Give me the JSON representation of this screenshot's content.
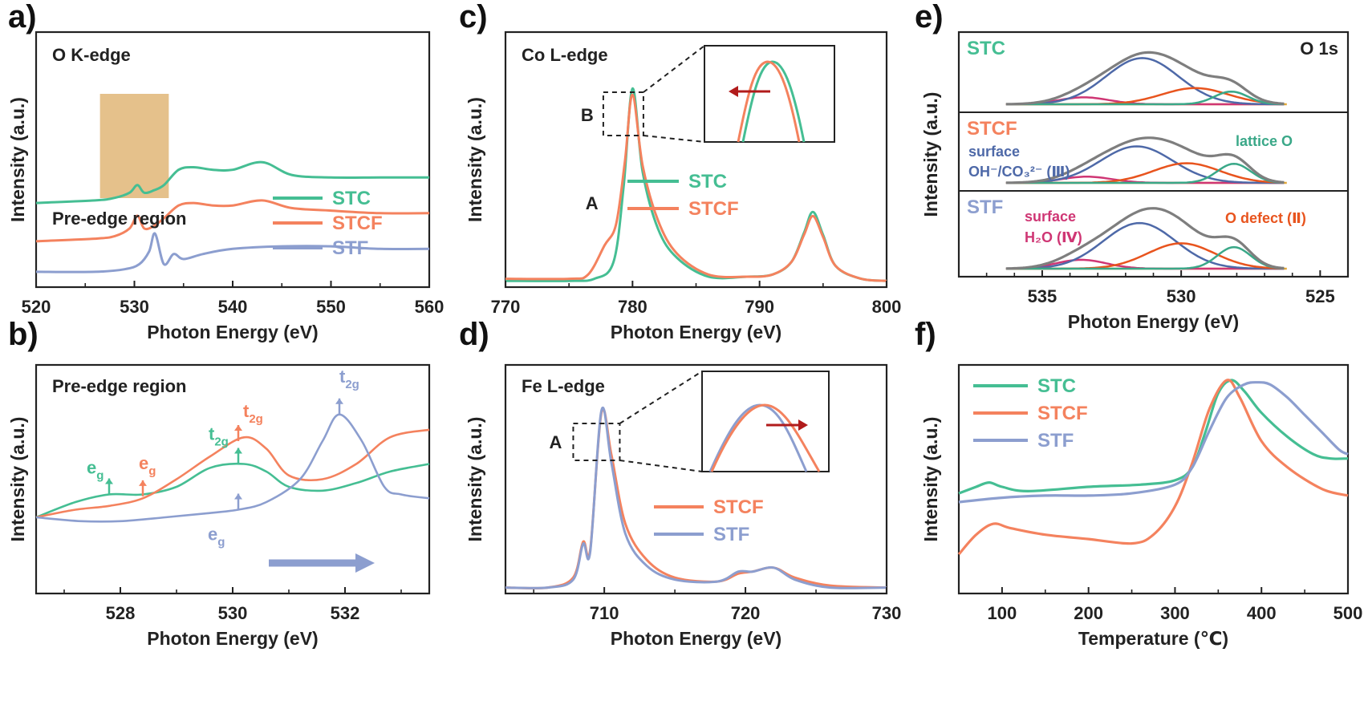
{
  "colors": {
    "STC": "#45BE93",
    "STCF": "#F4825E",
    "STF": "#8C9ECF",
    "text": "#222222"
  },
  "chart_data": [
    {
      "panel": "a)",
      "type": "line",
      "title": "O K-edge",
      "xlabel": "Photon Energy (eV)",
      "ylabel": "Intensity (a.u.)",
      "xlim": [
        520,
        560
      ],
      "xticks": [
        "520",
        "530",
        "540",
        "550",
        "560"
      ],
      "shaded_region_label": "Pre-edge region",
      "shaded_range": [
        526.5,
        533.5
      ],
      "legend": "bottom-right",
      "series": [
        {
          "name": "STC",
          "x": [
            520,
            526,
            528,
            529.5,
            530.3,
            531,
            532,
            533,
            534.5,
            536,
            538,
            540,
            543,
            546,
            550,
            555,
            560
          ],
          "y": [
            0.33,
            0.34,
            0.35,
            0.37,
            0.4,
            0.37,
            0.38,
            0.4,
            0.46,
            0.47,
            0.46,
            0.46,
            0.49,
            0.44,
            0.43,
            0.43,
            0.43
          ]
        },
        {
          "name": "STCF",
          "x": [
            520,
            526,
            528,
            529.5,
            530.3,
            531,
            532,
            533,
            534.5,
            536,
            538,
            540,
            543,
            546,
            550,
            555,
            560
          ],
          "y": [
            0.18,
            0.19,
            0.2,
            0.23,
            0.28,
            0.23,
            0.24,
            0.27,
            0.32,
            0.33,
            0.32,
            0.32,
            0.34,
            0.31,
            0.3,
            0.29,
            0.29
          ]
        },
        {
          "name": "STF",
          "x": [
            520,
            526,
            529,
            530.5,
            531.5,
            532.1,
            533,
            534,
            535,
            537,
            540,
            545,
            550,
            555,
            560
          ],
          "y": [
            0.06,
            0.06,
            0.07,
            0.09,
            0.14,
            0.21,
            0.09,
            0.13,
            0.11,
            0.13,
            0.15,
            0.16,
            0.16,
            0.15,
            0.15
          ]
        }
      ]
    },
    {
      "panel": "b)",
      "type": "line",
      "title": "Pre-edge region",
      "xlabel": "Photon Energy (eV)",
      "ylabel": "Intensity (a.u.)",
      "xlim": [
        526.5,
        533.5
      ],
      "xticks": [
        "528",
        "530",
        "532"
      ],
      "annotations": [
        "e",
        "g",
        "t",
        "2g"
      ],
      "series": [
        {
          "name": "STC",
          "x": [
            526.5,
            527.2,
            527.8,
            528.4,
            529.0,
            529.6,
            530.2,
            530.6,
            531.0,
            531.6,
            532.2,
            532.8,
            533.5
          ],
          "y": [
            0.5,
            0.54,
            0.56,
            0.56,
            0.58,
            0.63,
            0.64,
            0.62,
            0.58,
            0.57,
            0.59,
            0.62,
            0.64
          ]
        },
        {
          "name": "STCF",
          "x": [
            526.5,
            527.2,
            527.8,
            528.4,
            529.0,
            529.6,
            530.2,
            530.6,
            531.0,
            531.6,
            532.2,
            532.8,
            533.5
          ],
          "y": [
            0.5,
            0.52,
            0.53,
            0.55,
            0.6,
            0.66,
            0.71,
            0.68,
            0.61,
            0.6,
            0.64,
            0.71,
            0.73
          ]
        },
        {
          "name": "STF",
          "x": [
            526.5,
            527.3,
            528.0,
            528.8,
            529.5,
            530.1,
            530.6,
            531.2,
            531.6,
            531.9,
            532.3,
            532.7,
            533.0,
            533.5
          ],
          "y": [
            0.5,
            0.49,
            0.49,
            0.5,
            0.51,
            0.52,
            0.54,
            0.6,
            0.7,
            0.77,
            0.7,
            0.58,
            0.56,
            0.55
          ]
        }
      ]
    },
    {
      "panel": "c)",
      "type": "line",
      "title": "Co L-edge",
      "xlabel": "Photon Energy (eV)",
      "ylabel": "Intensity (a.u.)",
      "xlim": [
        770,
        800
      ],
      "xticks": [
        "770",
        "780",
        "790",
        "800"
      ],
      "peak_labels": [
        "A",
        "B"
      ],
      "legend": "center",
      "series": [
        {
          "name": "STC",
          "x": [
            770,
            775,
            777,
            778.5,
            779.3,
            780,
            780.8,
            782,
            783.5,
            786,
            789,
            791,
            792.5,
            793.5,
            794.2,
            795,
            796,
            798,
            800
          ],
          "y": [
            0.03,
            0.03,
            0.04,
            0.12,
            0.48,
            0.95,
            0.55,
            0.28,
            0.14,
            0.05,
            0.05,
            0.06,
            0.12,
            0.26,
            0.36,
            0.25,
            0.1,
            0.04,
            0.03
          ]
        },
        {
          "name": "STCF",
          "x": [
            770,
            775,
            776.5,
            777.8,
            778.7,
            779.4,
            780,
            780.8,
            782,
            783.5,
            786,
            789,
            791,
            792.5,
            793.5,
            794.2,
            795,
            796,
            798,
            800
          ],
          "y": [
            0.04,
            0.04,
            0.06,
            0.2,
            0.3,
            0.6,
            0.92,
            0.58,
            0.32,
            0.16,
            0.06,
            0.05,
            0.06,
            0.12,
            0.25,
            0.34,
            0.24,
            0.1,
            0.04,
            0.03
          ]
        }
      ]
    },
    {
      "panel": "d)",
      "type": "line",
      "title": "Fe L-edge",
      "xlabel": "Photon Energy (eV)",
      "ylabel": "Intensity (a.u.)",
      "xlim": [
        703,
        730
      ],
      "xticks": [
        "710",
        "720",
        "730"
      ],
      "peak_labels": [
        "A"
      ],
      "legend": "center-right",
      "series": [
        {
          "name": "STCF",
          "x": [
            703,
            706,
            707.8,
            708.5,
            709,
            709.8,
            710.5,
            711.5,
            713,
            715,
            718,
            719.5,
            720.5,
            722,
            723.5,
            726,
            730
          ],
          "y": [
            0.03,
            0.03,
            0.08,
            0.26,
            0.22,
            0.91,
            0.7,
            0.35,
            0.17,
            0.08,
            0.06,
            0.1,
            0.11,
            0.13,
            0.08,
            0.04,
            0.03
          ]
        },
        {
          "name": "STF",
          "x": [
            703,
            706,
            707.8,
            708.5,
            709,
            709.8,
            710.5,
            711.5,
            713,
            715,
            718,
            719.5,
            720.5,
            722,
            723.5,
            726,
            730
          ],
          "y": [
            0.03,
            0.03,
            0.07,
            0.25,
            0.21,
            0.92,
            0.66,
            0.3,
            0.14,
            0.07,
            0.06,
            0.11,
            0.11,
            0.13,
            0.07,
            0.03,
            0.03
          ]
        }
      ]
    },
    {
      "panel": "e)",
      "type": "line",
      "title": "O 1s",
      "xlabel": "Photon Energy (eV)",
      "ylabel": "Intensity (a.u.)",
      "xlim": [
        538,
        524
      ],
      "xticks": [
        "535",
        "530",
        "525"
      ],
      "samples": [
        "STC",
        "STCF",
        "STF"
      ],
      "component_labels": {
        "lattice": "lattice O",
        "defect": "O defect (Ⅱ)",
        "surface_oh_prefix": "surface",
        "surface_oh": "OH⁻/CO₃²⁻ (Ⅲ)",
        "surface_h2o_prefix": "surface",
        "surface_h2o": "H₂O (Ⅳ)"
      },
      "component_colors": {
        "envelope": "#7E7E7E",
        "III": "#4E69A8",
        "II": "#E8541E",
        "I": "#3AA888",
        "IV": "#CF3674",
        "baseline": "#E3A838"
      },
      "components": {
        "STC": {
          "IV": [
            533.5,
            0.12
          ],
          "III": [
            531.4,
            0.8
          ],
          "II": [
            529.5,
            0.28
          ],
          "I": [
            528.2,
            0.22
          ]
        },
        "STCF": {
          "IV": [
            533.4,
            0.11
          ],
          "III": [
            531.6,
            0.65
          ],
          "II": [
            529.8,
            0.35
          ],
          "I": [
            528.1,
            0.34
          ]
        },
        "STF": {
          "IV": [
            533.6,
            0.14
          ],
          "III": [
            531.5,
            0.72
          ],
          "II": [
            530.0,
            0.4
          ],
          "I": [
            528.1,
            0.34
          ]
        }
      }
    },
    {
      "panel": "f)",
      "type": "line",
      "xlabel": "Temperature (℃)",
      "ylabel": "Intensity (a.u.)",
      "xlim": [
        50,
        500
      ],
      "xticks": [
        "100",
        "200",
        "300",
        "400",
        "500"
      ],
      "legend": "top-left",
      "series": [
        {
          "name": "STC",
          "x": [
            50,
            70,
            85,
            100,
            130,
            200,
            260,
            300,
            320,
            335,
            350,
            365,
            380,
            400,
            430,
            460,
            480,
            500
          ],
          "y": [
            0.46,
            0.49,
            0.51,
            0.49,
            0.47,
            0.49,
            0.5,
            0.52,
            0.58,
            0.74,
            0.92,
            0.98,
            0.93,
            0.83,
            0.72,
            0.64,
            0.62,
            0.62
          ]
        },
        {
          "name": "STCF",
          "x": [
            50,
            70,
            90,
            110,
            150,
            200,
            250,
            275,
            300,
            320,
            340,
            360,
            375,
            400,
            430,
            470,
            500
          ],
          "y": [
            0.18,
            0.27,
            0.32,
            0.3,
            0.27,
            0.25,
            0.23,
            0.27,
            0.4,
            0.6,
            0.85,
            0.98,
            0.9,
            0.7,
            0.58,
            0.48,
            0.45
          ]
        },
        {
          "name": "STF",
          "x": [
            50,
            100,
            150,
            200,
            250,
            300,
            320,
            340,
            360,
            380,
            395,
            410,
            430,
            450,
            470,
            490,
            500
          ],
          "y": [
            0.42,
            0.44,
            0.45,
            0.45,
            0.46,
            0.5,
            0.58,
            0.75,
            0.9,
            0.96,
            0.97,
            0.96,
            0.9,
            0.82,
            0.74,
            0.66,
            0.64
          ]
        }
      ]
    }
  ]
}
